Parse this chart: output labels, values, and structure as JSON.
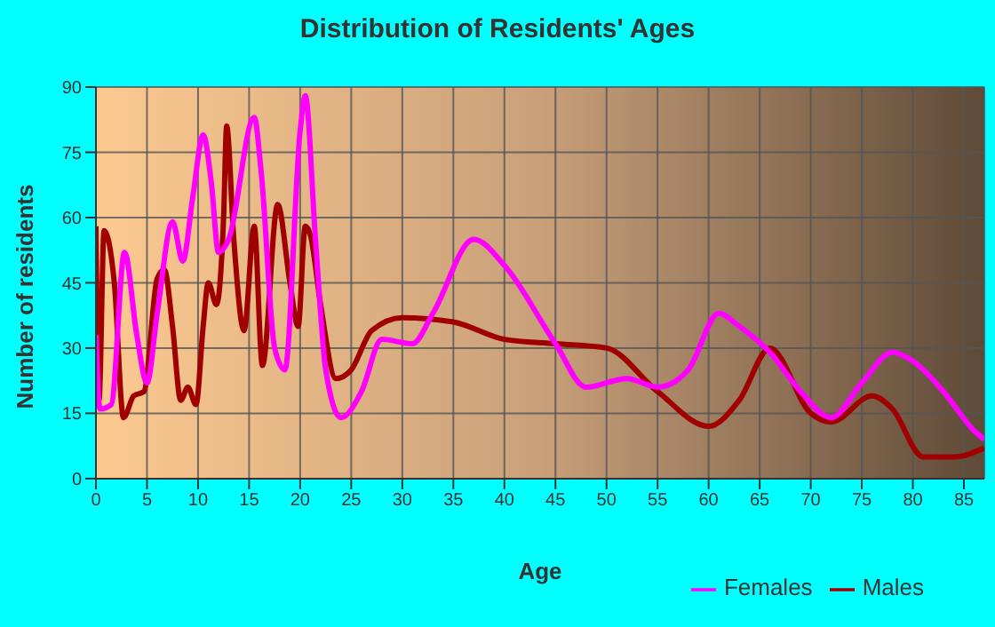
{
  "chart_data": {
    "type": "line",
    "title": "Distribution of Residents' Ages",
    "xlabel": "Age",
    "ylabel": "Number of residents",
    "xlim": [
      0,
      87
    ],
    "xticks": [
      0,
      5,
      10,
      15,
      20,
      25,
      30,
      35,
      40,
      45,
      50,
      55,
      60,
      65,
      70,
      75,
      80,
      85
    ],
    "ylim": [
      0,
      90
    ],
    "yticks": [
      0,
      15,
      30,
      45,
      60,
      75,
      90
    ],
    "grid": true,
    "legend": "bottom right",
    "marker": "none",
    "line_style": "solid",
    "series": [
      {
        "name": "Males",
        "color": "#a00000",
        "x": [
          0,
          0.3,
          0.8,
          1.8,
          2.7,
          3.7,
          4.7,
          6,
          6.7,
          7.5,
          8.3,
          9,
          9.8,
          10.5,
          11,
          11.8,
          12.5,
          12.8,
          13.5,
          14.5,
          15.5,
          16.3,
          17.8,
          19,
          19.8,
          20.5,
          21,
          22,
          23.5,
          25,
          27,
          30,
          35,
          40,
          45,
          50,
          55,
          60,
          63,
          66,
          70,
          72,
          76,
          78,
          81,
          84,
          87
        ],
        "values": [
          58,
          18,
          57,
          45,
          14,
          19,
          20,
          46,
          48,
          35,
          18,
          21,
          17,
          35,
          45,
          40,
          60,
          81,
          55,
          34,
          58,
          26,
          63,
          45,
          35,
          58,
          56,
          40,
          23,
          25,
          34,
          37,
          36,
          32,
          31,
          30,
          20,
          12,
          18,
          30,
          15,
          13,
          19,
          16,
          5,
          5,
          7
        ]
      },
      {
        "name": "Females",
        "color": "#ff00ff",
        "x": [
          0,
          0.4,
          1.5,
          2.8,
          4,
          5,
          6,
          7.5,
          8.5,
          9.5,
          10.5,
          11.3,
          12,
          13,
          15.5,
          16.2,
          17.5,
          18.5,
          20,
          20.5,
          21.5,
          22.5,
          24,
          26,
          28,
          31,
          33,
          37,
          40,
          45,
          48,
          52,
          55,
          58,
          61,
          63,
          66,
          69,
          72,
          75,
          78,
          80,
          83,
          86,
          87
        ],
        "values": [
          33,
          16,
          17,
          52,
          33,
          22,
          38,
          59,
          50,
          65,
          79,
          68,
          52,
          55,
          83,
          70,
          30,
          25,
          80,
          88,
          55,
          25,
          14,
          20,
          32,
          31,
          38,
          55,
          49,
          31,
          21,
          23,
          21,
          25,
          38,
          35,
          29,
          20,
          14,
          22,
          29,
          27,
          20,
          11,
          9
        ]
      }
    ]
  }
}
